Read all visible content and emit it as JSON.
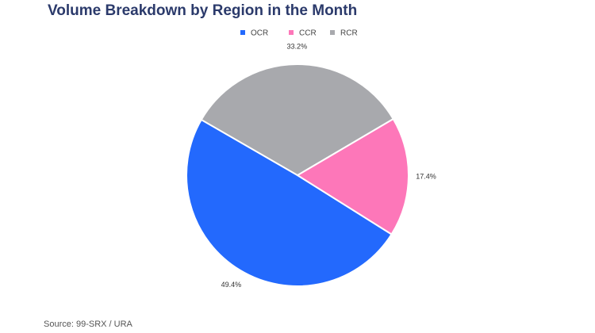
{
  "chart_data": {
    "type": "pie",
    "title": "Volume Breakdown by Region in the Month",
    "categories": [
      "OCR",
      "CCR",
      "RCR"
    ],
    "values": [
      49.4,
      17.4,
      33.2
    ],
    "value_labels": [
      "49.4%",
      "17.4%",
      "33.2%"
    ],
    "colors": [
      "#2369fd",
      "#fd77b9",
      "#a8a9ad"
    ],
    "legend": "top",
    "source": "Source: 99-SRX / URA"
  }
}
